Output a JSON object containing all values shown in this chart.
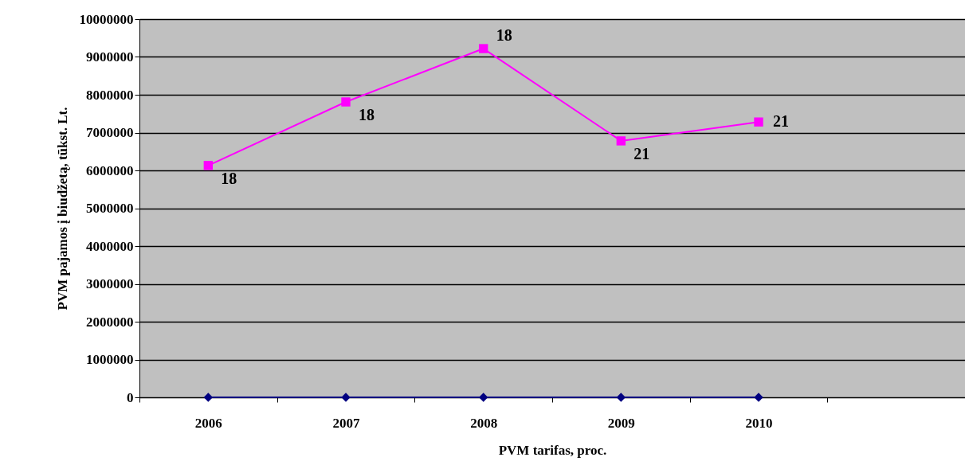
{
  "chart_data": {
    "type": "line",
    "xlabel": "PVM tarifas, proc.",
    "ylabel": "PVM pajamos į biudžetą, tūkst. Lt.",
    "categories": [
      "2006",
      "2007",
      "2008",
      "2009",
      "2010",
      null
    ],
    "series": [
      {
        "color": "#ff00ff",
        "marker": "square",
        "values": [
          6130000,
          7810000,
          9220000,
          6780000,
          7280000,
          null
        ]
      },
      {
        "color": "#000080",
        "marker": "diamond",
        "values": [
          0,
          0,
          0,
          0,
          0,
          null
        ]
      }
    ],
    "annotations": [
      {
        "text": "18",
        "x": "2006",
        "y": 6130000
      },
      {
        "text": "18",
        "x": "2007",
        "y": 7810000
      },
      {
        "text": "18",
        "x": "2008",
        "y": 9220000
      },
      {
        "text": "21",
        "x": "2009",
        "y": 6780000
      },
      {
        "text": "21",
        "x": "2010",
        "y": 7280000
      }
    ],
    "ylim": [
      0,
      10000000
    ],
    "yticks": [
      0,
      1000000,
      2000000,
      3000000,
      4000000,
      5000000,
      6000000,
      7000000,
      8000000,
      9000000,
      10000000
    ],
    "grid": "y"
  }
}
